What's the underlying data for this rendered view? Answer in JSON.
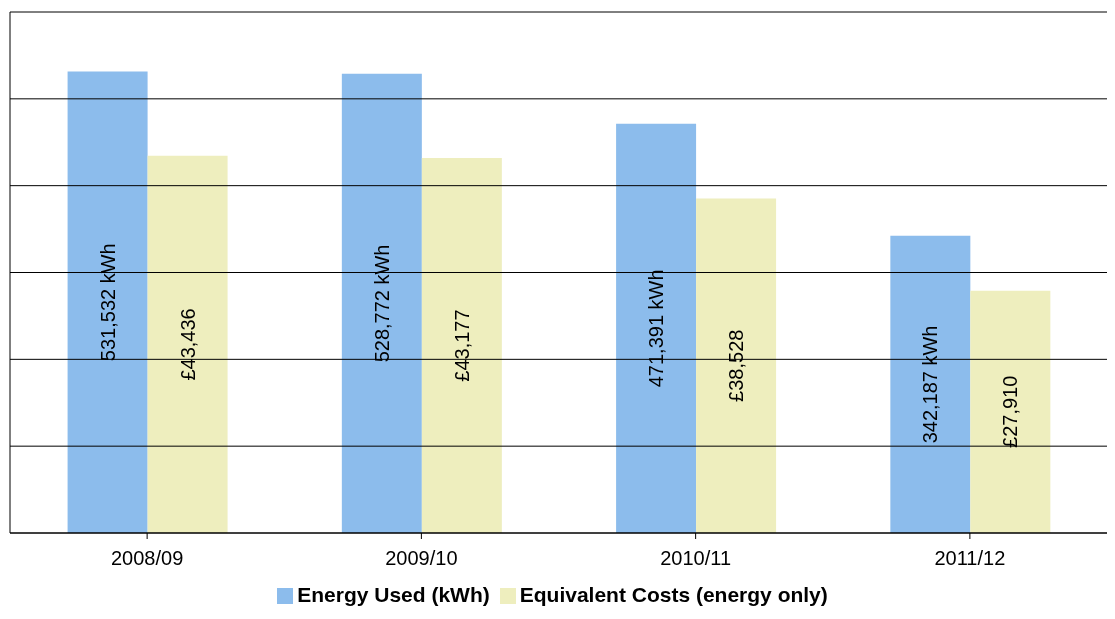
{
  "chart_data": {
    "type": "bar",
    "categories": [
      "2008/09",
      "2009/10",
      "2010/11",
      "2011/12"
    ],
    "series": [
      {
        "name": "Energy Used (kWh)",
        "color": "#8cbcec",
        "values": [
          531532,
          528772,
          471391,
          342187
        ],
        "value_labels": [
          "531,532 kWh",
          "528,772 kWh",
          "471,391 kWh",
          "342,187 kWh"
        ]
      },
      {
        "name": "Equivalent Costs (energy only)",
        "color": "#eeeebe",
        "axis": "y2",
        "values": [
          43436,
          43177,
          38528,
          27910
        ],
        "value_labels": [
          "£43,436",
          "£43,177",
          "£38,528",
          "£27,910"
        ]
      }
    ],
    "ylim": [
      0,
      600000
    ],
    "yticks": [
      {
        "value": 0,
        "label": null
      },
      {
        "value": 100000,
        "label": null
      },
      {
        "value": 200000,
        "label": null
      },
      {
        "value": 300000,
        "label": null
      },
      {
        "value": 400000,
        "label": null
      },
      {
        "value": 500000,
        "label": null
      },
      {
        "value": 600000,
        "label": null
      }
    ],
    "y2lim": [
      0,
      60000
    ],
    "tick_labels": "x",
    "grid": "y",
    "legend": "bottom"
  }
}
